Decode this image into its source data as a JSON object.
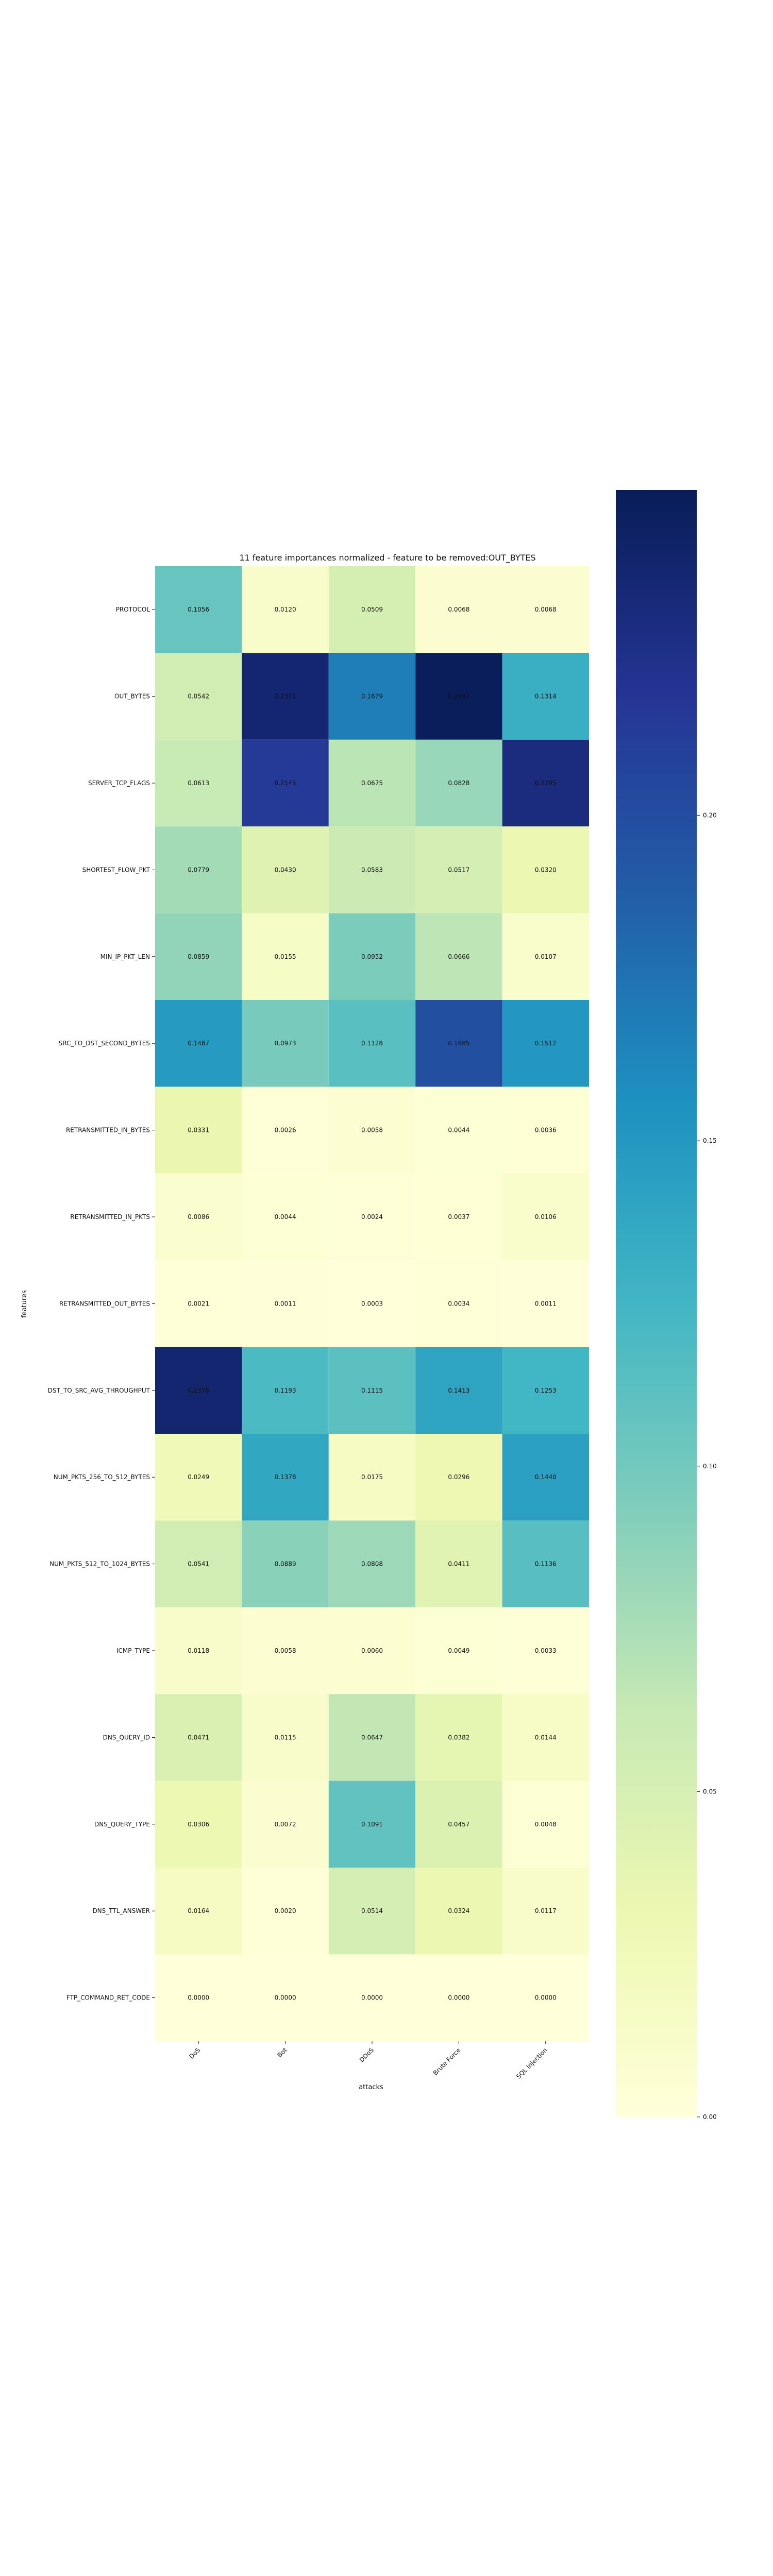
{
  "chart_data": {
    "type": "heatmap",
    "title": "11 feature importances normalized - feature to be removed:OUT_BYTES",
    "xlabel": "attacks",
    "ylabel": "features",
    "columns": [
      "DoS",
      "Bot",
      "DDoS",
      "Brute Force",
      "SQL Injection"
    ],
    "rows": [
      "PROTOCOL",
      "OUT_BYTES",
      "SERVER_TCP_FLAGS",
      "SHORTEST_FLOW_PKT",
      "MIN_IP_PKT_LEN",
      "SRC_TO_DST_SECOND_BYTES",
      "RETRANSMITTED_IN_BYTES",
      "RETRANSMITTED_IN_PKTS",
      "RETRANSMITTED_OUT_BYTES",
      "DST_TO_SRC_AVG_THROUGHPUT",
      "NUM_PKTS_256_TO_512_BYTES",
      "NUM_PKTS_512_TO_1024_BYTES",
      "ICMP_TYPE",
      "DNS_QUERY_ID",
      "DNS_QUERY_TYPE",
      "DNS_TTL_ANSWER",
      "FTP_COMMAND_RET_CODE"
    ],
    "values": [
      [
        0.1056,
        0.012,
        0.0509,
        0.0068,
        0.0068
      ],
      [
        0.0542,
        0.2371,
        0.1679,
        0.2487,
        0.1314
      ],
      [
        0.0613,
        0.2145,
        0.0675,
        0.0828,
        0.2295
      ],
      [
        0.0779,
        0.043,
        0.0583,
        0.0517,
        0.032
      ],
      [
        0.0859,
        0.0155,
        0.0952,
        0.0666,
        0.0107
      ],
      [
        0.1487,
        0.0973,
        0.1128,
        0.1985,
        0.1512
      ],
      [
        0.0331,
        0.0026,
        0.0058,
        0.0044,
        0.0036
      ],
      [
        0.0086,
        0.0044,
        0.0024,
        0.0037,
        0.0106
      ],
      [
        0.0021,
        0.0011,
        0.0003,
        0.0034,
        0.0011
      ],
      [
        0.2376,
        0.1193,
        0.1115,
        0.1413,
        0.1253
      ],
      [
        0.0249,
        0.1378,
        0.0175,
        0.0296,
        0.144
      ],
      [
        0.0541,
        0.0889,
        0.0808,
        0.0411,
        0.1136
      ],
      [
        0.0118,
        0.0058,
        0.006,
        0.0049,
        0.0033
      ],
      [
        0.0471,
        0.0115,
        0.0647,
        0.0382,
        0.0144
      ],
      [
        0.0306,
        0.0072,
        0.1091,
        0.0457,
        0.0048
      ],
      [
        0.0164,
        0.002,
        0.0514,
        0.0324,
        0.0117
      ],
      [
        0.0,
        0.0,
        0.0,
        0.0,
        0.0
      ]
    ],
    "colorbar": {
      "colormap": "YlGnBu",
      "range": [
        0,
        0.25
      ],
      "ticks": [
        0.0,
        0.05,
        0.1,
        0.15,
        0.2
      ],
      "tick_labels": [
        "0.00",
        "0.05",
        "0.10",
        "0.15",
        "0.20"
      ]
    },
    "grid": false,
    "legend": "colorbar right"
  }
}
